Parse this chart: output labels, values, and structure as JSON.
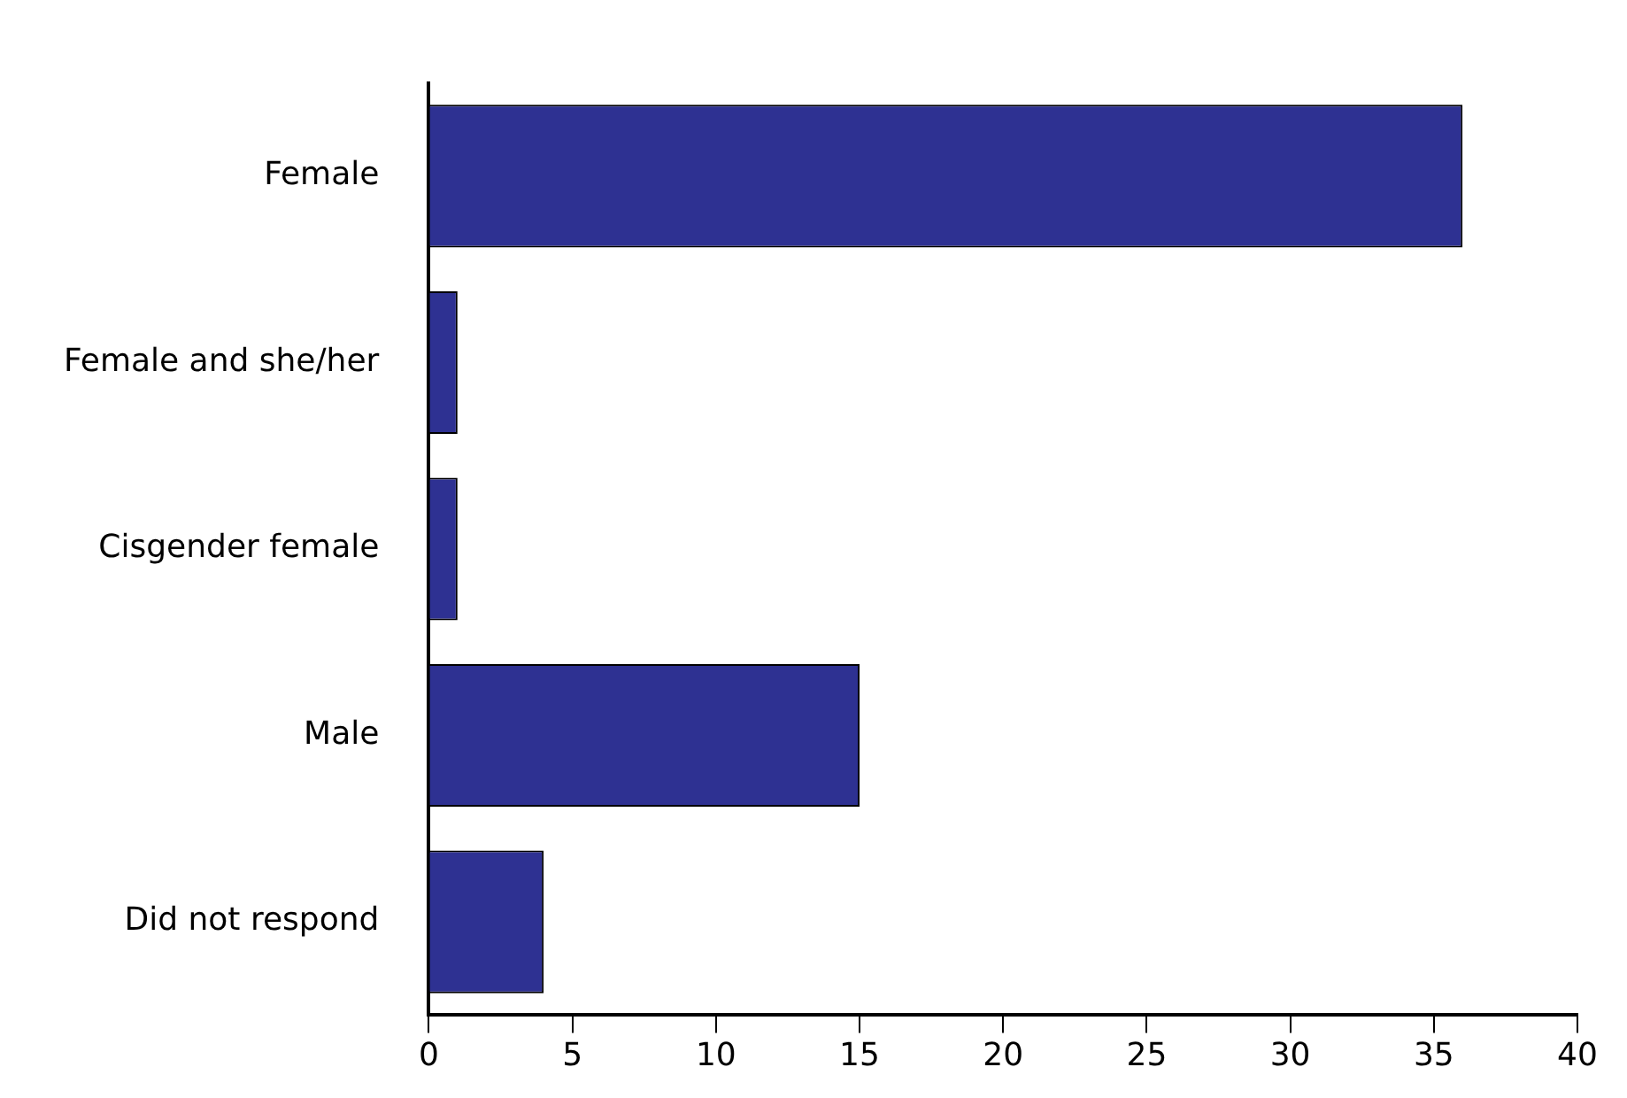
{
  "chart_data": {
    "type": "bar",
    "orientation": "horizontal",
    "categories": [
      "Female",
      "Female and she/her",
      "Cisgender female",
      "Male",
      "Did not respond"
    ],
    "values": [
      36,
      1,
      1,
      15,
      4
    ],
    "color": "#2e3192",
    "xlim": [
      0,
      40
    ],
    "xticks": [
      0,
      5,
      10,
      15,
      20,
      25,
      30,
      35,
      40
    ],
    "grid": false,
    "legend": false
  }
}
